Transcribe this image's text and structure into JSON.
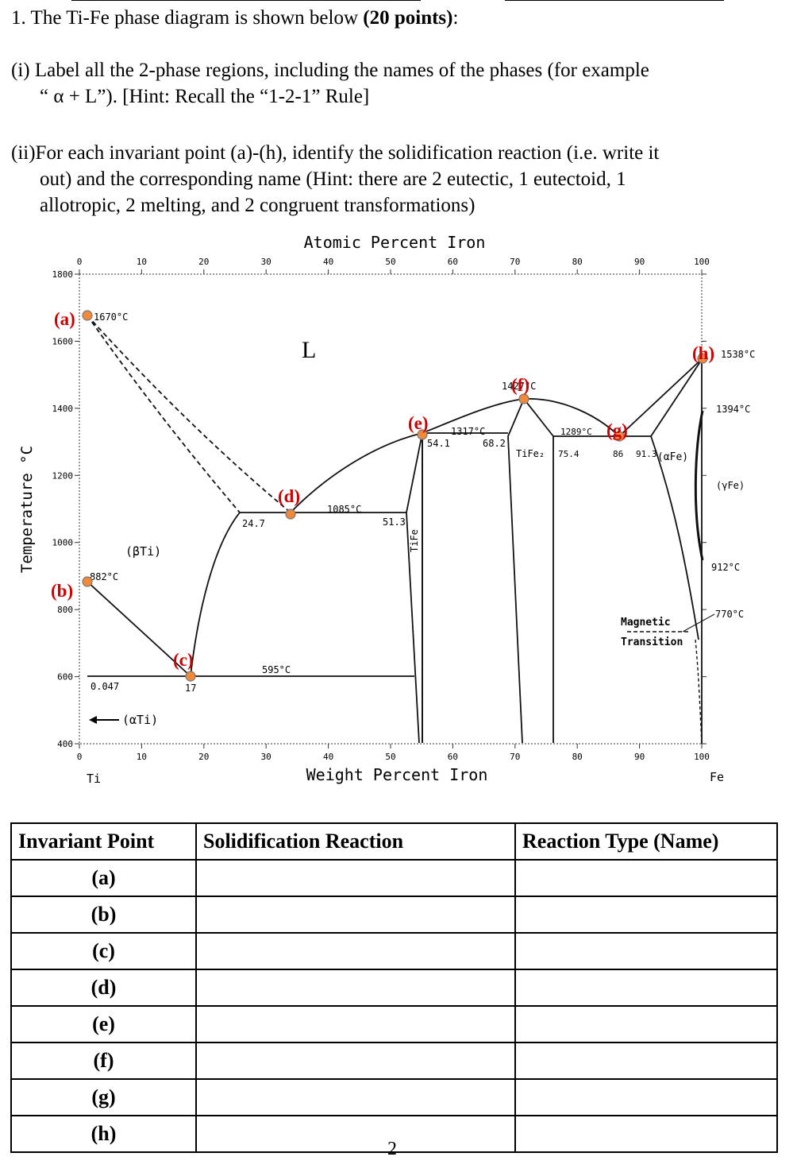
{
  "question": {
    "title_pre": "1. The Ti-Fe phase diagram is shown below ",
    "title_points": "(20 points)",
    "title_post": ":",
    "part1_line1": "(i) Label all the 2-phase regions, including the names of the phases (for example",
    "part1_line2": "“ α + L”). [Hint: Recall the “1-2-1” Rule]",
    "part2_line1": "(ii)For each invariant point (a)-(h), identify the solidification reaction (i.e. write it",
    "part2_line2": "out) and the corresponding name (Hint: there are 2 eutectic, 1 eutectoid, 1",
    "part2_line3": "allotropic, 2 melting, and 2 congruent transformations)"
  },
  "diagram": {
    "top_axis_label": "Atomic Percent Iron",
    "bottom_axis_label": "Weight Percent Iron",
    "y_axis_label": "Temperature °C",
    "top_ticks": [
      "0",
      "10",
      "20",
      "30",
      "40",
      "50",
      "60",
      "70",
      "80",
      "90",
      "100"
    ],
    "bottom_ticks": [
      "0",
      "10",
      "20",
      "30",
      "40",
      "50",
      "60",
      "70",
      "80",
      "90",
      "100"
    ],
    "y_ticks": [
      "1800",
      "1600",
      "1400",
      "1200",
      "1000",
      "800",
      "600",
      "400"
    ],
    "end_left": "Ti",
    "end_right": "Fe",
    "region_L": "L",
    "phase_bTi": "(βTi)",
    "phase_aTi": "(αTi)",
    "phase_TiFe": "TiFe",
    "phase_TiFe2": "TiFe₂",
    "phase_aFe": "(αFe)",
    "phase_gFe": "(γFe)",
    "magnetic_line1": "Magnetic",
    "magnetic_line2": "Transition",
    "temps": {
      "a": "1670°C",
      "b": "882°C",
      "d": "1085°C",
      "e": "1317°C",
      "f": "1427°C",
      "g": "1289°C",
      "h": "1538°C",
      "t1394": "1394°C",
      "t912": "912°C",
      "t770": "770°C",
      "t595": "595°C"
    },
    "comps": {
      "c0047": "0.047",
      "c17": "17",
      "c247": "24.7",
      "c513": "51.3",
      "c541": "54.1",
      "c682": "68.2",
      "c754": "75.4",
      "c86": "86",
      "c913": "91.3"
    },
    "points": [
      "(a)",
      "(b)",
      "(c)",
      "(d)",
      "(e)",
      "(f)",
      "(g)",
      "(h)"
    ]
  },
  "table": {
    "headers": [
      "Invariant Point",
      "Solidification Reaction",
      "Reaction Type (Name)"
    ],
    "rows": [
      {
        "point": "(a)",
        "reaction": "",
        "type": ""
      },
      {
        "point": "(b)",
        "reaction": "",
        "type": ""
      },
      {
        "point": "(c)",
        "reaction": "",
        "type": ""
      },
      {
        "point": "(d)",
        "reaction": "",
        "type": ""
      },
      {
        "point": "(e)",
        "reaction": "",
        "type": ""
      },
      {
        "point": "(f)",
        "reaction": "",
        "type": ""
      },
      {
        "point": "(g)",
        "reaction": "",
        "type": ""
      },
      {
        "point": "(h)",
        "reaction": "",
        "type": ""
      }
    ]
  },
  "page_number": "2",
  "colors": {
    "point_marker": "#f08a3a",
    "point_label": "#d00000"
  }
}
